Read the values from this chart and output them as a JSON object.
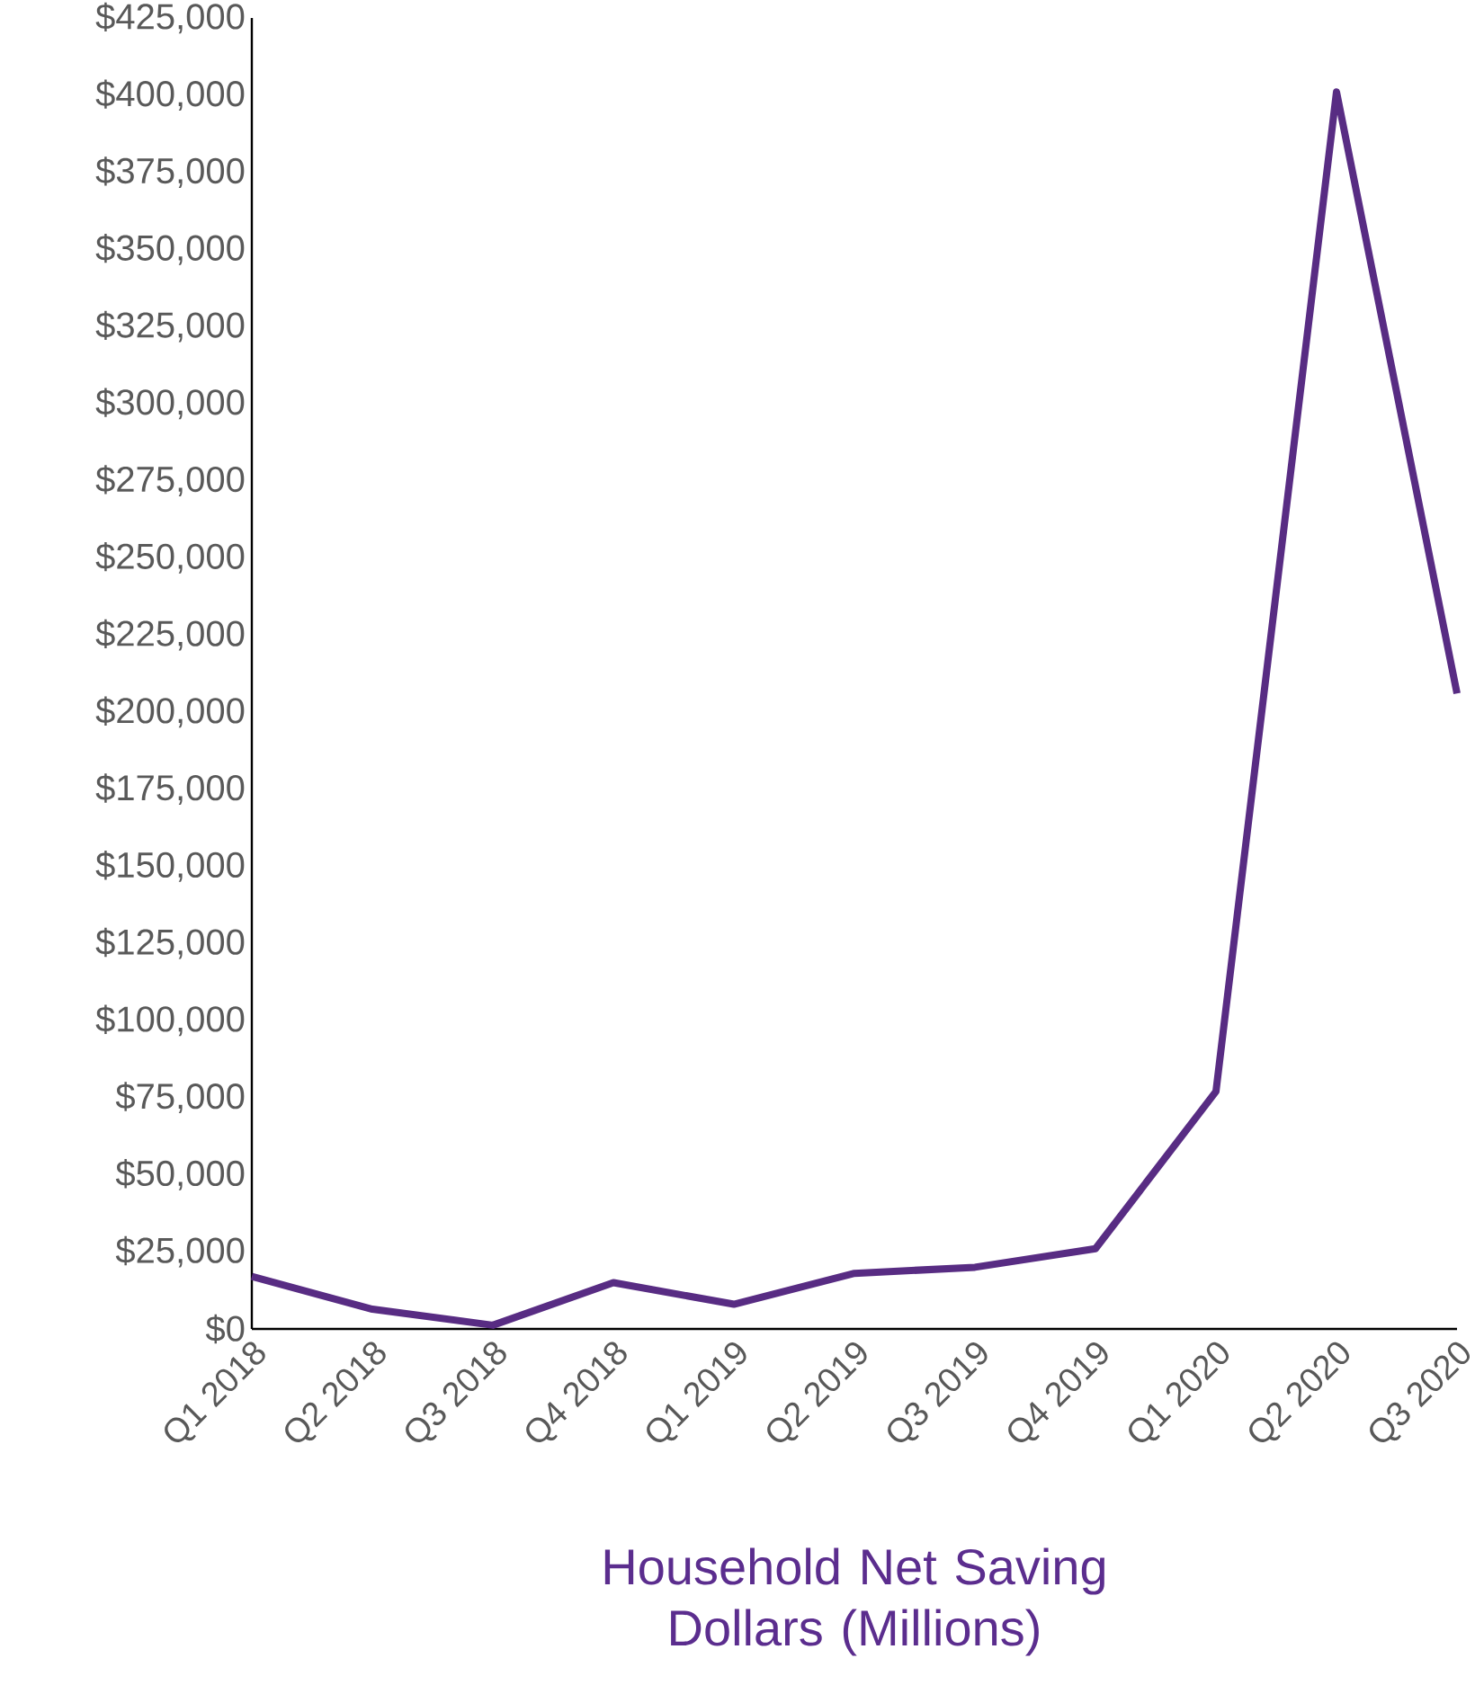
{
  "chart_data": {
    "type": "line",
    "xlabel": "Household Net Saving Dollars (Millions)",
    "categories": [
      "Q1 2018",
      "Q2 2018",
      "Q3 2018",
      "Q4 2018",
      "Q1 2019",
      "Q2 2019",
      "Q3 2019",
      "Q4 2019",
      "Q1 2020",
      "Q2 2020",
      "Q3 2020"
    ],
    "series": [
      {
        "color": "#582c83",
        "values": [
          17000,
          6400,
          1200,
          15000,
          8000,
          18000,
          20000,
          26000,
          77000,
          401000,
          206000
        ]
      }
    ],
    "ylim": [
      0,
      425000
    ],
    "yticks": [
      {
        "value": 0,
        "label": "$0"
      },
      {
        "value": 25000,
        "label": "$25,000"
      },
      {
        "value": 50000,
        "label": "$50,000"
      },
      {
        "value": 75000,
        "label": "$75,000"
      },
      {
        "value": 100000,
        "label": "$100,000"
      },
      {
        "value": 125000,
        "label": "$125,000"
      },
      {
        "value": 150000,
        "label": "$150,000"
      },
      {
        "value": 175000,
        "label": "$175,000"
      },
      {
        "value": 200000,
        "label": "$200,000"
      },
      {
        "value": 225000,
        "label": "$225,000"
      },
      {
        "value": 250000,
        "label": "$250,000"
      },
      {
        "value": 275000,
        "label": "$275,000"
      },
      {
        "value": 300000,
        "label": "$300,000"
      },
      {
        "value": 325000,
        "label": "$325,000"
      },
      {
        "value": 350000,
        "label": "$350,000"
      },
      {
        "value": 375000,
        "label": "$375,000"
      },
      {
        "value": 400000,
        "label": "$400,000"
      },
      {
        "value": 425000,
        "label": "$425,000"
      }
    ],
    "grid": false,
    "marker": "none",
    "line_style": "solid"
  }
}
